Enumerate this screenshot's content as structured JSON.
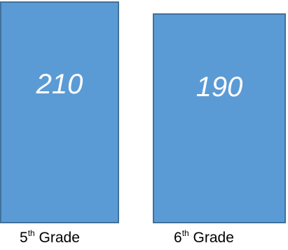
{
  "boxes": [
    {
      "value": "210",
      "label_number": "5",
      "label_suffix": "th",
      "label_text": " Grade"
    },
    {
      "value": "190",
      "label_number": "6",
      "label_suffix": "th",
      "label_text": " Grade"
    }
  ],
  "colors": {
    "box_fill": "#5b9bd5",
    "box_border": "#41719c",
    "value_text": "#ffffff"
  }
}
